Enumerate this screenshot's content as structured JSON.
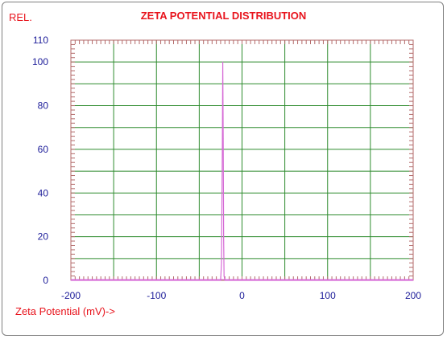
{
  "chart_data": {
    "type": "line",
    "title": "ZETA POTENTIAL DISTRIBUTION",
    "ylabel": "REL.",
    "xlabel": "Zeta Potential (mV)->",
    "xlim": [
      -200,
      200
    ],
    "ylim": [
      0,
      110
    ],
    "x_ticks": [
      -200,
      -100,
      0,
      100,
      200
    ],
    "x_tick_labels": [
      "-200",
      "-100",
      "0",
      "100",
      "200"
    ],
    "y_ticks": [
      0,
      20,
      40,
      60,
      80,
      100,
      110
    ],
    "y_tick_labels": [
      "0",
      "20",
      "40",
      "60",
      "80",
      "100",
      "110"
    ],
    "grid": true,
    "colors": {
      "title": "#e8141d",
      "ticks": "#1c1c99",
      "grid": "#2e8b2e",
      "series": "#d66bd6"
    },
    "series": [
      {
        "x": [
          -200,
          -25,
          -24,
          -23,
          -22.5,
          -22,
          -21.5,
          -21,
          -20,
          200
        ],
        "y": [
          0,
          0,
          8,
          60,
          100,
          65,
          20,
          2,
          0,
          0
        ]
      }
    ]
  }
}
